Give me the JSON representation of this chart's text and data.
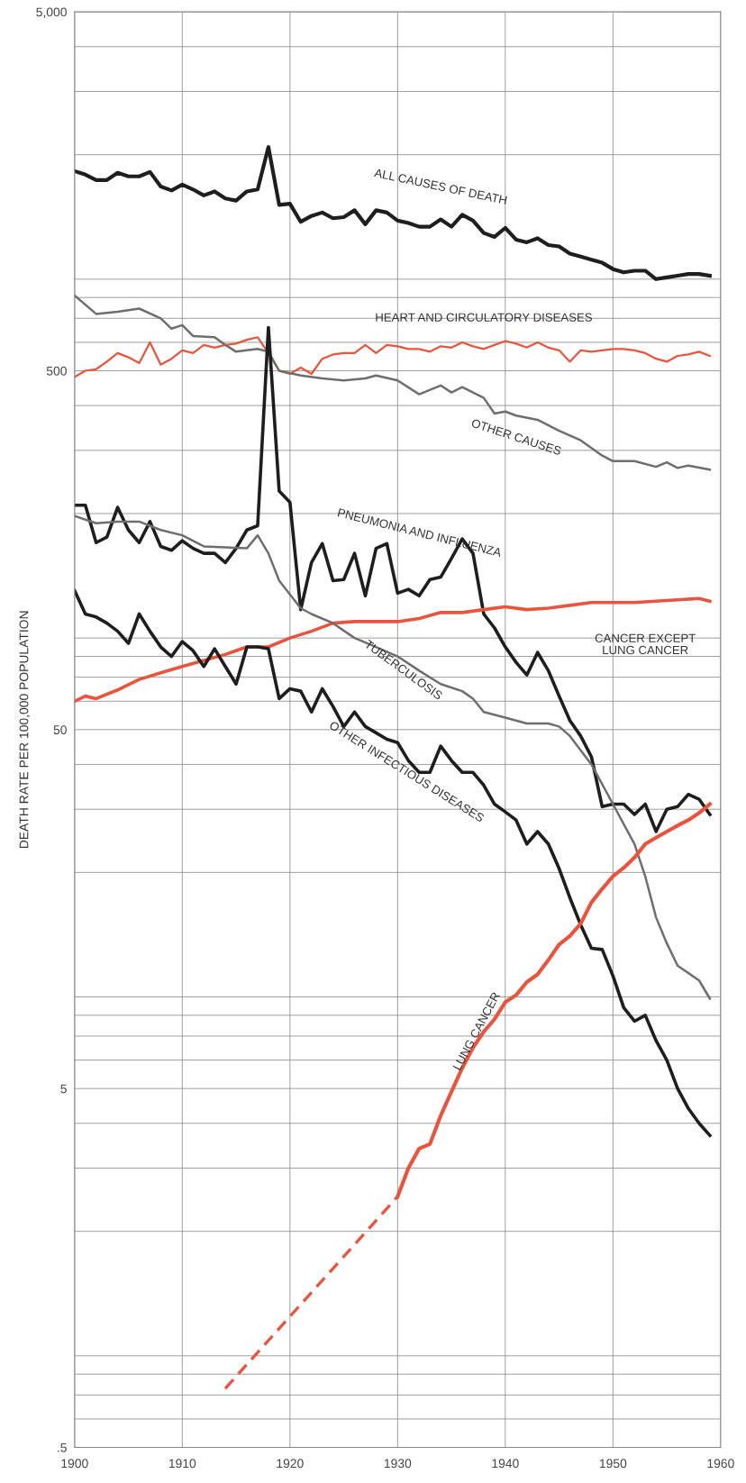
{
  "chart_data": {
    "type": "line",
    "ylabel": "DEATH RATE PER 100,000 POPULATION",
    "log": "y",
    "grid": true,
    "legend": false,
    "xlim": [
      1900,
      1960
    ],
    "xticks": [
      1900,
      1910,
      1920,
      1930,
      1940,
      1950,
      1960
    ],
    "ylim": [
      0.5,
      5000
    ],
    "yticks": [
      {
        "value": 0.5,
        "label": ".5"
      },
      5,
      50,
      500,
      {
        "value": 5000,
        "label": "5,000"
      }
    ],
    "series": [
      {
        "name": "ALL CAUSES OF DEATH",
        "color": "#1e1e1e",
        "x": [
          1900,
          1901,
          1902,
          1903,
          1904,
          1905,
          1906,
          1907,
          1908,
          1909,
          1910,
          1911,
          1912,
          1913,
          1914,
          1915,
          1916,
          1917,
          1918,
          1919,
          1920,
          1921,
          1922,
          1923,
          1924,
          1925,
          1926,
          1927,
          1928,
          1929,
          1930,
          1931,
          1932,
          1933,
          1934,
          1935,
          1936,
          1937,
          1938,
          1939,
          1940,
          1941,
          1942,
          1943,
          1944,
          1945,
          1946,
          1947,
          1948,
          1949,
          1950,
          1951,
          1952,
          1953,
          1954,
          1955,
          1956,
          1957,
          1958,
          1959
        ],
        "values": [
          1800,
          1760,
          1700,
          1700,
          1780,
          1740,
          1740,
          1790,
          1630,
          1590,
          1650,
          1600,
          1540,
          1580,
          1510,
          1490,
          1580,
          1600,
          2100,
          1450,
          1460,
          1300,
          1350,
          1380,
          1330,
          1340,
          1400,
          1280,
          1400,
          1380,
          1310,
          1290,
          1260,
          1260,
          1320,
          1260,
          1360,
          1310,
          1210,
          1180,
          1250,
          1160,
          1140,
          1170,
          1120,
          1110,
          1060,
          1040,
          1020,
          1000,
          960,
          940,
          950,
          950,
          900,
          910,
          920,
          930,
          930,
          920
        ]
      },
      {
        "name": "HEART AND CIRCULATORY DISEASES",
        "color": "#e8553e",
        "x": [
          1900,
          1901,
          1902,
          1903,
          1904,
          1905,
          1906,
          1907,
          1908,
          1909,
          1910,
          1911,
          1912,
          1913,
          1914,
          1915,
          1916,
          1917,
          1918,
          1919,
          1920,
          1921,
          1922,
          1923,
          1924,
          1925,
          1926,
          1927,
          1928,
          1929,
          1930,
          1931,
          1932,
          1933,
          1934,
          1935,
          1936,
          1937,
          1938,
          1939,
          1940,
          1941,
          1942,
          1943,
          1944,
          1945,
          1946,
          1947,
          1948,
          1949,
          1950,
          1951,
          1952,
          1953,
          1954,
          1955,
          1956,
          1957,
          1958,
          1959
        ],
        "values": [
          480,
          500,
          505,
          530,
          560,
          545,
          525,
          600,
          520,
          540,
          570,
          560,
          590,
          580,
          590,
          595,
          610,
          620,
          560,
          500,
          490,
          510,
          490,
          540,
          555,
          560,
          560,
          590,
          560,
          590,
          585,
          575,
          575,
          565,
          585,
          580,
          600,
          585,
          575,
          590,
          605,
          595,
          580,
          600,
          580,
          570,
          530,
          570,
          565,
          570,
          575,
          575,
          570,
          560,
          540,
          530,
          550,
          555,
          565,
          550
        ]
      },
      {
        "name": "OTHER CAUSES",
        "color": "#6e6e6e",
        "x": [
          1900,
          1902,
          1904,
          1906,
          1908,
          1909,
          1910,
          1911,
          1913,
          1914,
          1915,
          1917,
          1918,
          1919,
          1921,
          1923,
          1925,
          1927,
          1928,
          1930,
          1932,
          1934,
          1935,
          1936,
          1938,
          1939,
          1940,
          1941,
          1943,
          1945,
          1947,
          1949,
          1950,
          1952,
          1954,
          1955,
          1956,
          1957,
          1959
        ],
        "values": [
          810,
          720,
          730,
          745,
          700,
          655,
          670,
          625,
          620,
          590,
          565,
          575,
          565,
          500,
          485,
          476,
          470,
          476,
          485,
          470,
          430,
          455,
          435,
          450,
          420,
          380,
          385,
          375,
          365,
          340,
          320,
          290,
          280,
          280,
          270,
          278,
          268,
          272,
          265
        ]
      },
      {
        "name": "PNEUMONIA AND INFLUENZA",
        "color": "#1e1e1e",
        "x": [
          1900,
          1901,
          1902,
          1903,
          1904,
          1905,
          1906,
          1907,
          1908,
          1909,
          1910,
          1911,
          1912,
          1913,
          1914,
          1915,
          1916,
          1917,
          1918,
          1919,
          1920,
          1921,
          1922,
          1923,
          1924,
          1925,
          1926,
          1927,
          1928,
          1929,
          1930,
          1931,
          1932,
          1933,
          1934,
          1935,
          1936,
          1937,
          1938,
          1939,
          1940,
          1941,
          1942,
          1943,
          1944,
          1945,
          1946,
          1947,
          1948,
          1949,
          1950,
          1951,
          1952,
          1953,
          1954,
          1955,
          1956,
          1957,
          1958,
          1959
        ],
        "values": [
          211,
          211,
          166,
          172,
          208,
          180,
          166,
          190,
          162,
          158,
          168,
          160,
          155,
          155,
          146,
          160,
          180,
          185,
          660,
          231,
          215,
          108,
          146,
          165,
          130,
          131,
          155,
          118,
          160,
          165,
          120,
          123,
          118,
          131,
          133,
          150,
          170,
          155,
          105,
          96,
          85,
          77,
          71,
          82,
          73,
          62,
          53,
          48,
          42,
          30.5,
          31,
          31,
          29,
          31,
          26,
          30,
          30.5,
          33,
          32,
          29
        ]
      },
      {
        "name": "CANCER EXCEPT\nLUNG CANCER",
        "color": "#e8553e",
        "x": [
          1900,
          1901,
          1902,
          1904,
          1906,
          1908,
          1910,
          1912,
          1914,
          1916,
          1918,
          1920,
          1922,
          1924,
          1926,
          1928,
          1930,
          1932,
          1934,
          1936,
          1938,
          1940,
          1942,
          1944,
          1946,
          1948,
          1950,
          1952,
          1954,
          1956,
          1958,
          1959
        ],
        "values": [
          60,
          62,
          61,
          64.5,
          69,
          72,
          75,
          78,
          81,
          85,
          85,
          90,
          94,
          99,
          100,
          100,
          100,
          102,
          106,
          106,
          108,
          110,
          108,
          109,
          111,
          113,
          113,
          113,
          114,
          115,
          116,
          114
        ]
      },
      {
        "name": "TUBERCULOSIS",
        "color": "#6e6e6e",
        "x": [
          1900,
          1902,
          1904,
          1906,
          1908,
          1910,
          1912,
          1914,
          1916,
          1917,
          1918,
          1919,
          1921,
          1922,
          1924,
          1926,
          1928,
          1930,
          1932,
          1934,
          1936,
          1937,
          1938,
          1940,
          1942,
          1944,
          1945,
          1946,
          1948,
          1950,
          1952,
          1953,
          1954,
          1955,
          1956,
          1958,
          1959
        ],
        "values": [
          197,
          188,
          190,
          190,
          180,
          174,
          162,
          161,
          160,
          174,
          155,
          130,
          109,
          105,
          99,
          90,
          85,
          80,
          73,
          67,
          64,
          61,
          56,
          54,
          52,
          52,
          51,
          48,
          40,
          31,
          24,
          19.5,
          15,
          12.7,
          11,
          10,
          8.9
        ]
      },
      {
        "name": "OTHER INFECTIOUS DISEASES",
        "color": "#1e1e1e",
        "x": [
          1900,
          1901,
          1902,
          1903,
          1904,
          1905,
          1906,
          1907,
          1908,
          1909,
          1910,
          1911,
          1912,
          1913,
          1914,
          1915,
          1916,
          1917,
          1918,
          1919,
          1920,
          1921,
          1922,
          1923,
          1924,
          1925,
          1926,
          1927,
          1928,
          1929,
          1930,
          1931,
          1932,
          1933,
          1934,
          1935,
          1936,
          1937,
          1938,
          1939,
          1940,
          1941,
          1942,
          1943,
          1944,
          1945,
          1946,
          1947,
          1948,
          1949,
          1950,
          1951,
          1952,
          1953,
          1954,
          1955,
          1956,
          1957,
          1958,
          1959
        ],
        "values": [
          122,
          105,
          103,
          99,
          94,
          87,
          105,
          94,
          85,
          80,
          88,
          83,
          75,
          84,
          75,
          67,
          85,
          85,
          84,
          61,
          65,
          64,
          56,
          65,
          58,
          51,
          56,
          51,
          49,
          47,
          46,
          41,
          38,
          38,
          45,
          41,
          38,
          38,
          35,
          31,
          29.5,
          28,
          24,
          26,
          24,
          20.5,
          17,
          14.3,
          12.3,
          12.2,
          10.3,
          8.4,
          7.7,
          8.0,
          6.8,
          6.0,
          5.0,
          4.4,
          4.0,
          3.7
        ]
      },
      {
        "name": "LUNG CANCER",
        "color": "#e8553e",
        "x": [
          1930,
          1931,
          1932,
          1933,
          1934,
          1935,
          1936,
          1937,
          1938,
          1939,
          1940,
          1941,
          1942,
          1943,
          1944,
          1945,
          1946,
          1947,
          1948,
          1949,
          1950,
          1951,
          1952,
          1953,
          1954,
          1955,
          1956,
          1957,
          1958,
          1959
        ],
        "values": [
          2.5,
          3.0,
          3.4,
          3.5,
          4.2,
          4.9,
          5.7,
          6.5,
          7.2,
          7.8,
          8.7,
          9.1,
          9.9,
          10.4,
          11.4,
          12.6,
          13.3,
          14.4,
          16.5,
          18,
          19.5,
          20.6,
          22,
          24,
          25,
          26,
          27,
          28,
          29.3,
          31
        ]
      },
      {
        "color": "#e8553e",
        "line_style": "dashed",
        "x": [
          1914,
          1930
        ],
        "values": [
          0.73,
          2.5
        ]
      }
    ]
  }
}
